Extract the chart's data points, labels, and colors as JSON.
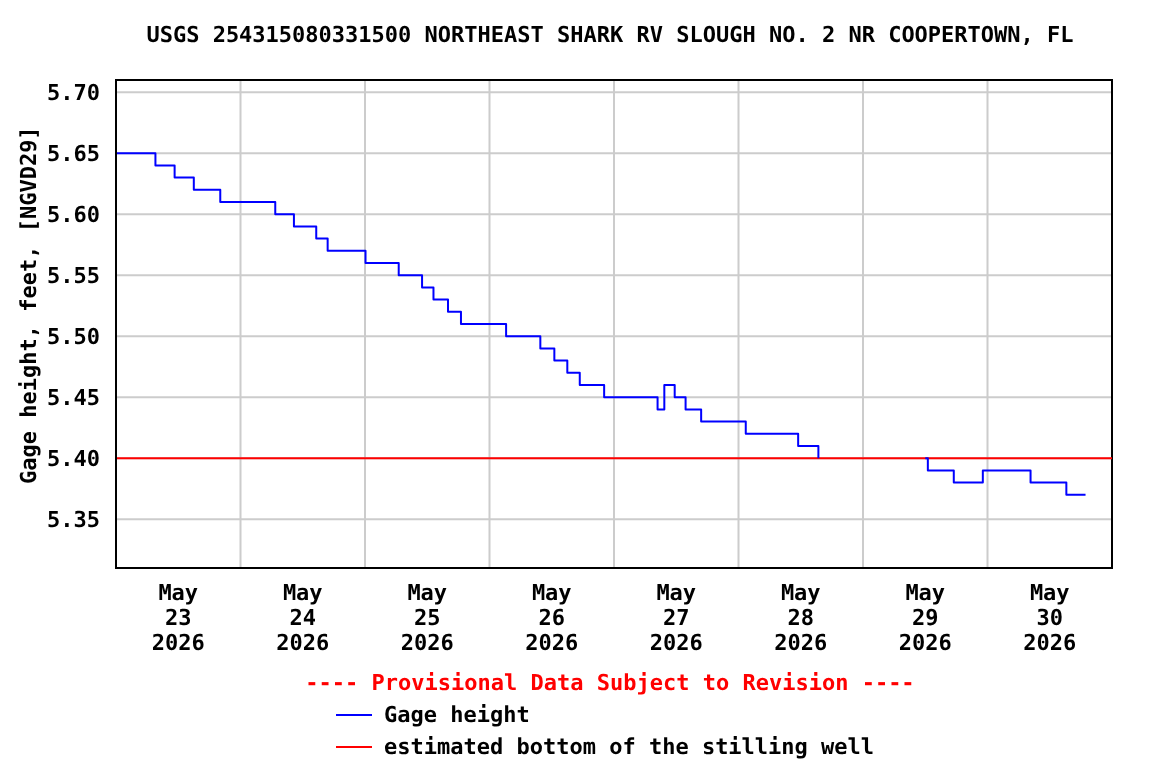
{
  "chart_data": {
    "type": "step",
    "title": "USGS 254315080331500 NORTHEAST SHARK RV SLOUGH NO. 2 NR COOPERTOWN, FL",
    "ylabel": "Gage height, feet, [NGVD29]",
    "x": [
      "2026-05-23T00:00",
      "2026-05-23T07:36",
      "2026-05-23T11:18",
      "2026-05-23T15:00",
      "2026-05-23T20:06",
      "2026-05-24T06:42",
      "2026-05-24T10:18",
      "2026-05-24T14:36",
      "2026-05-24T16:48",
      "2026-05-25T00:06",
      "2026-05-25T06:30",
      "2026-05-25T11:00",
      "2026-05-25T13:12",
      "2026-05-25T16:00",
      "2026-05-25T18:30",
      "2026-05-26T03:12",
      "2026-05-26T09:48",
      "2026-05-26T12:30",
      "2026-05-26T15:00",
      "2026-05-26T17:24",
      "2026-05-26T22:06",
      "2026-05-27T08:24",
      "2026-05-27T09:42",
      "2026-05-27T11:42",
      "2026-05-27T13:48",
      "2026-05-27T16:48",
      "2026-05-28T01:24",
      "2026-05-28T11:30",
      "2026-05-28T15:24",
      "2026-05-28T20:00",
      "2026-05-29T12:00",
      "2026-05-29T12:30",
      "2026-05-29T17:30",
      "2026-05-29T23:06",
      "2026-05-30T08:18",
      "2026-05-30T15:12",
      "2026-05-30T18:54"
    ],
    "series": [
      {
        "name": "Gage height",
        "color": "#0000ff",
        "values": [
          5.65,
          5.64,
          5.63,
          5.62,
          5.61,
          5.6,
          5.59,
          5.58,
          5.57,
          5.56,
          5.55,
          5.54,
          5.53,
          5.52,
          5.51,
          5.5,
          5.49,
          5.48,
          5.47,
          5.46,
          5.45,
          5.44,
          5.46,
          5.45,
          5.44,
          5.43,
          5.42,
          5.41,
          5.4,
          null,
          5.4,
          5.39,
          5.38,
          5.39,
          5.38,
          5.37,
          5.37
        ]
      }
    ],
    "xlim": [
      "2026-05-23T00:00",
      "2026-05-31T00:00"
    ],
    "xticks": [
      {
        "value": "2026-05-23T12:00",
        "label": "May 23 2026"
      },
      {
        "value": "2026-05-24T00:00",
        "label": null
      },
      {
        "value": "2026-05-24T12:00",
        "label": "May 24 2026"
      },
      {
        "value": "2026-05-25T00:00",
        "label": null
      },
      {
        "value": "2026-05-25T12:00",
        "label": "May 25 2026"
      },
      {
        "value": "2026-05-26T00:00",
        "label": null
      },
      {
        "value": "2026-05-26T12:00",
        "label": "May 26 2026"
      },
      {
        "value": "2026-05-27T00:00",
        "label": null
      },
      {
        "value": "2026-05-27T12:00",
        "label": "May 27 2026"
      },
      {
        "value": "2026-05-28T00:00",
        "label": null
      },
      {
        "value": "2026-05-28T12:00",
        "label": "May 28 2026"
      },
      {
        "value": "2026-05-29T00:00",
        "label": null
      },
      {
        "value": "2026-05-29T12:00",
        "label": "May 29 2026"
      },
      {
        "value": "2026-05-30T00:00",
        "label": null
      },
      {
        "value": "2026-05-30T12:00",
        "label": "May 30 2026"
      }
    ],
    "ylim": [
      5.31,
      5.71
    ],
    "yticks": [
      5.35,
      {
        "value": 5.4,
        "label": "5.40"
      },
      5.45,
      {
        "value": 5.5,
        "label": "5.50"
      },
      5.55,
      {
        "value": 5.6,
        "label": "5.60"
      },
      5.65,
      {
        "value": 5.7,
        "label": "5.70"
      }
    ],
    "ref_lines": [
      {
        "axis": "y",
        "value": 5.4,
        "label": "estimated bottom of the stilling well",
        "color": "#ff0000"
      }
    ],
    "annotations": [
      "---- Provisional Data Subject to Revision ----"
    ],
    "grid": true,
    "legend": "bottom"
  }
}
